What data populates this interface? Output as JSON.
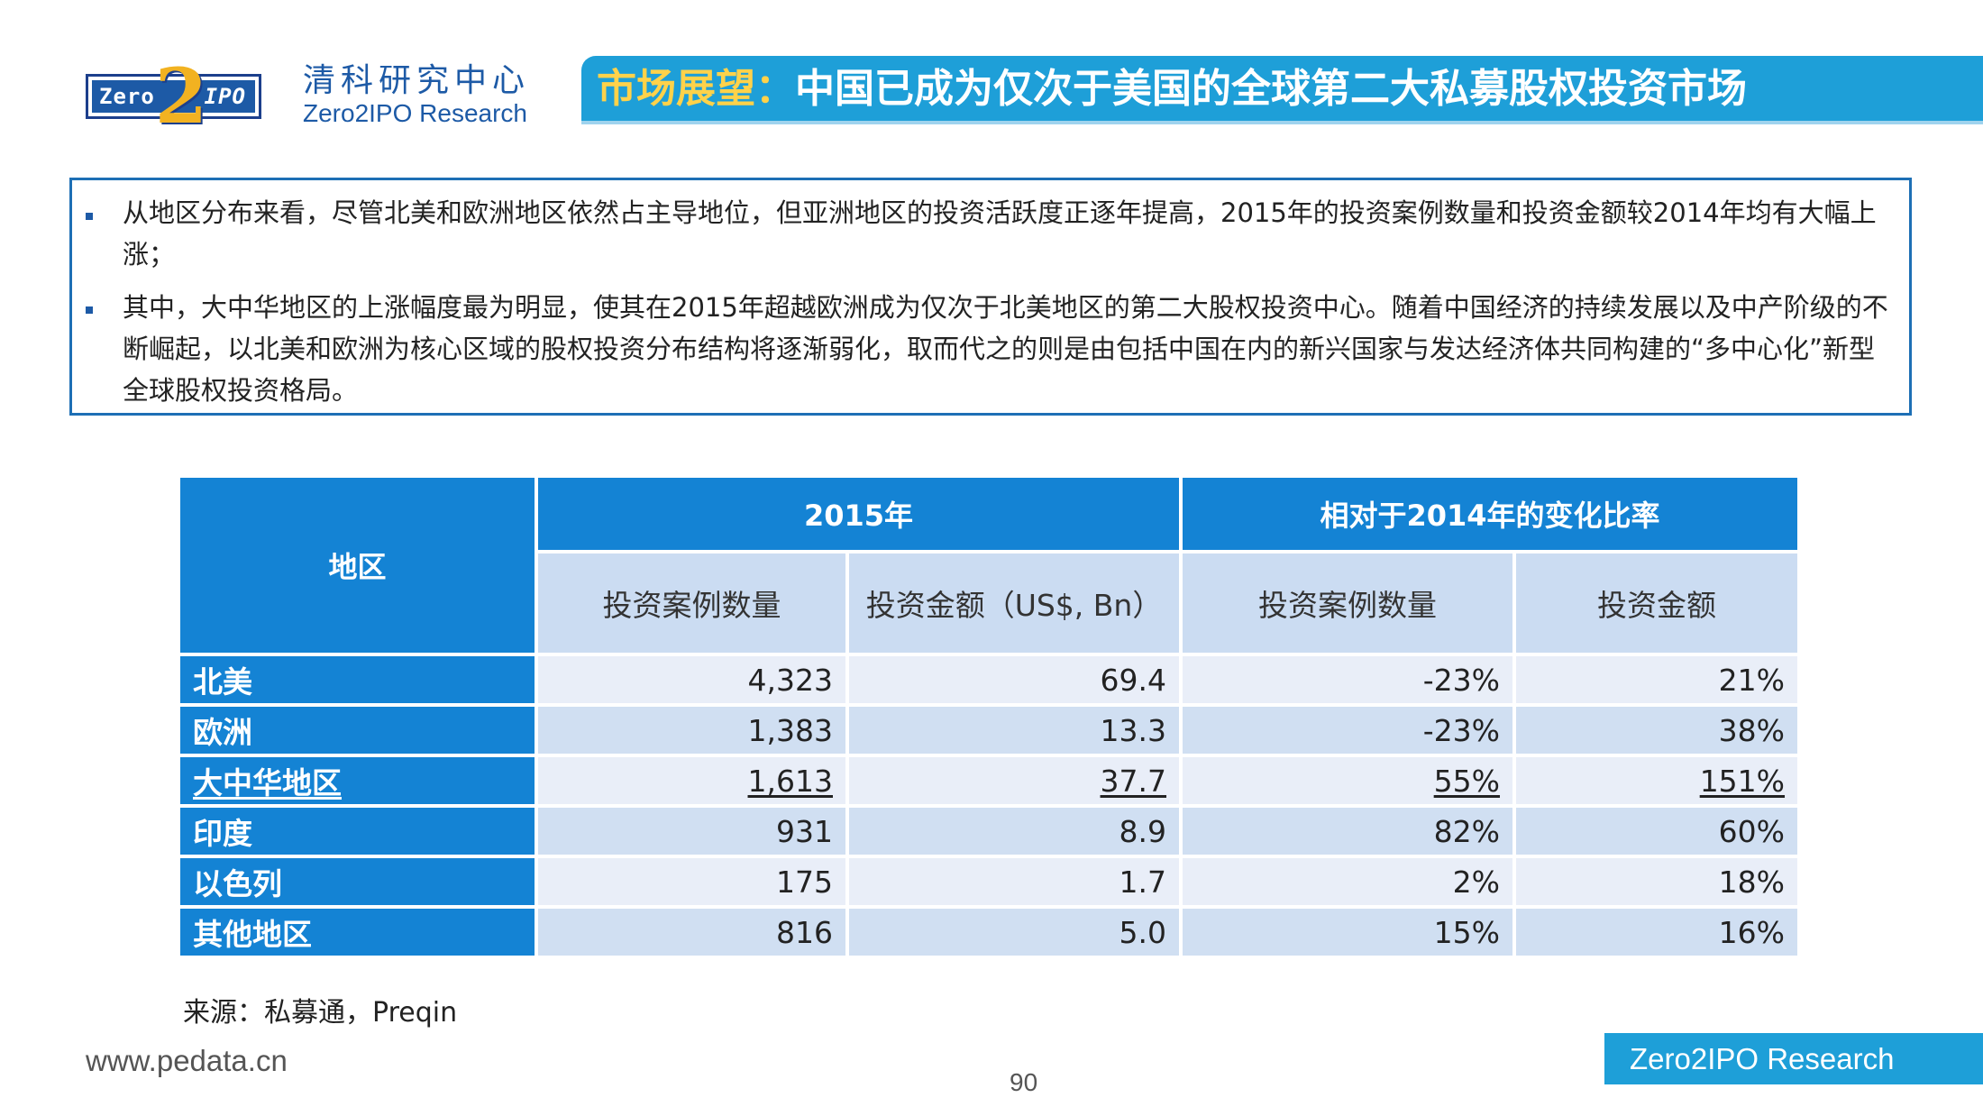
{
  "header": {
    "logo": {
      "left": "Zero",
      "digit": "2",
      "right": "IPO"
    },
    "brand_cn": "清科研究中心",
    "brand_en": "Zero2IPO Research",
    "title_highlight": "市场展望：",
    "title_main": "中国已成为仅次于美国的全球第二大私募股权投资市场"
  },
  "notes": [
    "从地区分布来看，尽管北美和欧洲地区依然占主导地位，但亚洲地区的投资活跃度正逐年提高，2015年的投资案例数量和投资金额较2014年均有大幅上涨；",
    "其中，大中华地区的上涨幅度最为明显，使其在2015年超越欧洲成为仅次于北美地区的第二大股权投资中心。随着中国经济的持续发展以及中产阶级的不断崛起，以北美和欧洲为核心区域的股权投资分布结构将逐渐弱化，取而代之的则是由包括中国在内的新兴国家与发达经济体共同构建的“多中心化”新型全球股权投资格局。"
  ],
  "table": {
    "region_header": "地区",
    "group_2015": "2015年",
    "group_change": "相对于2014年的变化比率",
    "sub_cases": "投资案例数量",
    "sub_amount": "投资金额（US$, Bn）",
    "sub_change_cases": "投资案例数量",
    "sub_change_amount": "投资金额",
    "rows": [
      {
        "region": "北美",
        "cases": "4,323",
        "amount": "69.4",
        "chg_cases": "-23%",
        "chg_amount": "21%"
      },
      {
        "region": "欧洲",
        "cases": "1,383",
        "amount": "13.3",
        "chg_cases": "-23%",
        "chg_amount": "38%"
      },
      {
        "region": "大中华地区",
        "cases": "1,613",
        "amount": "37.7",
        "chg_cases": "55%",
        "chg_amount": "151%"
      },
      {
        "region": "印度",
        "cases": "931",
        "amount": "8.9",
        "chg_cases": "82%",
        "chg_amount": "60%"
      },
      {
        "region": "以色列",
        "cases": "175",
        "amount": "1.7",
        "chg_cases": "2%",
        "chg_amount": "18%"
      },
      {
        "region": "其他地区",
        "cases": "816",
        "amount": "5.0",
        "chg_cases": "15%",
        "chg_amount": "16%"
      }
    ]
  },
  "footer": {
    "source": "来源：私募通，Preqin",
    "website": "www.pedata.cn",
    "page_number": "90",
    "badge": "Zero2IPO Research"
  },
  "colors": {
    "title_bar": "#1e9fd8",
    "table_header": "#1483d4",
    "subheader": "#cbdcf2",
    "row_light": "#e9eef8",
    "row_dark": "#d0dff2",
    "highlight_text": "#ffd24a"
  }
}
